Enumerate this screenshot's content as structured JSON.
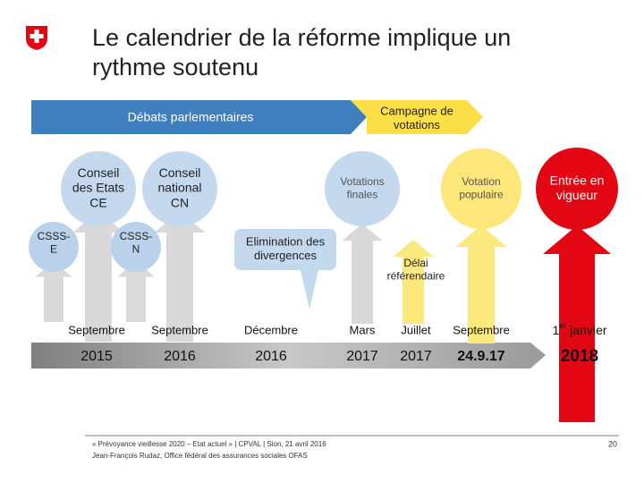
{
  "header": {
    "title_lines": [
      "Le calendrier de la réforme implique un",
      "rythme soutenu"
    ]
  },
  "phases": [
    {
      "lines": [
        "Débats parlementaires"
      ]
    },
    {
      "lines": [
        "Campagne de",
        "votations"
      ]
    }
  ],
  "nodes": [
    {
      "lines": [
        "Conseil",
        "des Etats",
        "CE"
      ]
    },
    {
      "lines": [
        "Conseil",
        "national",
        "CN"
      ]
    },
    {
      "lines": [
        "CSSS-",
        "E"
      ]
    },
    {
      "lines": [
        "CSSS-",
        "N"
      ]
    },
    {
      "lines": [
        "Votations",
        "finales"
      ]
    },
    {
      "lines": [
        "Votation",
        "populaire"
      ]
    },
    {
      "lines": [
        "Entrée en",
        "vigueur"
      ]
    }
  ],
  "callouts": [
    {
      "lines": [
        "Elimination des",
        "divergences"
      ]
    },
    {
      "lines": [
        "Délai",
        "référendaire"
      ]
    }
  ],
  "timeline": [
    {
      "month": "Septembre",
      "year": "2015"
    },
    {
      "month": "Septembre",
      "year": "2016"
    },
    {
      "month": "Décembre",
      "year": "2016"
    },
    {
      "month": "Mars",
      "year": "2017"
    },
    {
      "month": "Juillet",
      "year": "2017"
    },
    {
      "month": "Septembre",
      "year": "24.9.17"
    },
    {
      "month_parts": [
        "1",
        "er",
        "janvier"
      ],
      "year": "2018"
    }
  ],
  "footer": {
    "lines": [
      "« Prévoyance vieillesse 2020 – Etat actuel » | CPVAL | Sion, 21 avril 2016",
      "Jean-François Rudaz, Office fédéral des assurances sociales OFAS"
    ],
    "page": "20"
  }
}
